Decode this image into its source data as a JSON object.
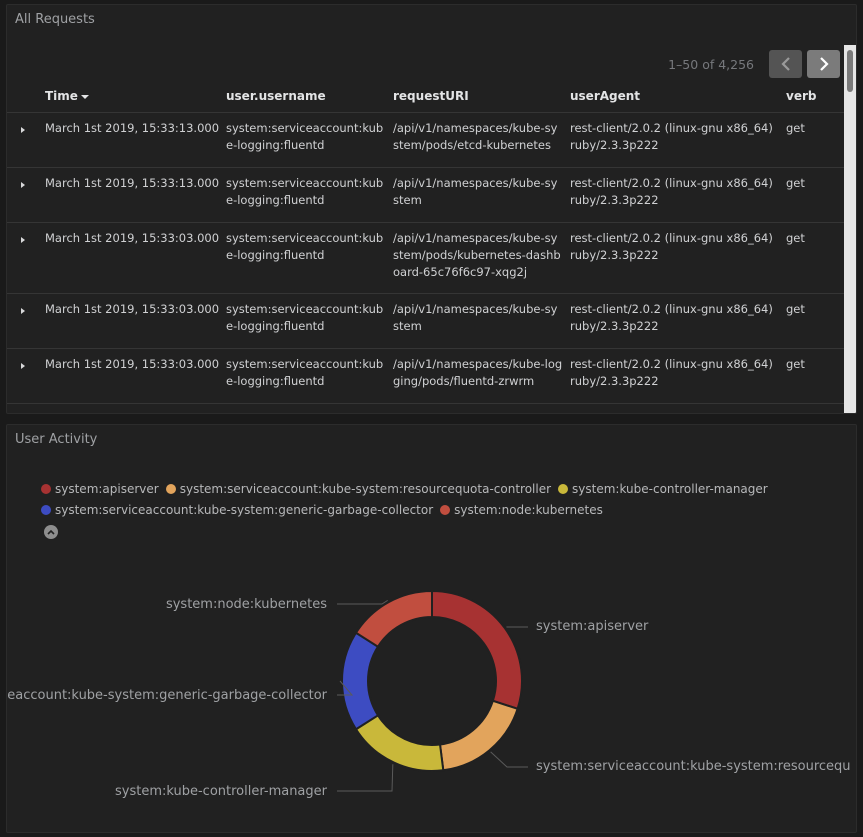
{
  "requests_panel": {
    "title": "All Requests",
    "pagination": "1–50 of 4,256",
    "columns": [
      "Time",
      "user.username",
      "requestURI",
      "userAgent",
      "verb"
    ],
    "rows": [
      {
        "time": "March 1st 2019, 15:33:13.000",
        "user": "system:serviceaccount:kube-logging:fluentd",
        "uri": "/api/v1/namespaces/kube-system/pods/etcd-kubernetes",
        "ua": "rest-client/2.0.2 (linux-gnu x86_64) ruby/2.3.3p222",
        "verb": "get"
      },
      {
        "time": "March 1st 2019, 15:33:13.000",
        "user": "system:serviceaccount:kube-logging:fluentd",
        "uri": "/api/v1/namespaces/kube-system",
        "ua": "rest-client/2.0.2 (linux-gnu x86_64) ruby/2.3.3p222",
        "verb": "get"
      },
      {
        "time": "March 1st 2019, 15:33:03.000",
        "user": "system:serviceaccount:kube-logging:fluentd",
        "uri": "/api/v1/namespaces/kube-system/pods/kubernetes-dashboard-65c76f6c97-xqg2j",
        "ua": "rest-client/2.0.2 (linux-gnu x86_64) ruby/2.3.3p222",
        "verb": "get"
      },
      {
        "time": "March 1st 2019, 15:33:03.000",
        "user": "system:serviceaccount:kube-logging:fluentd",
        "uri": "/api/v1/namespaces/kube-system",
        "ua": "rest-client/2.0.2 (linux-gnu x86_64) ruby/2.3.3p222",
        "verb": "get"
      },
      {
        "time": "March 1st 2019, 15:33:03.000",
        "user": "system:serviceaccount:kube-logging:fluentd",
        "uri": "/api/v1/namespaces/kube-logging/pods/fluentd-zrwrm",
        "ua": "rest-client/2.0.2 (linux-gnu x86_64) ruby/2.3.3p222",
        "verb": "get"
      }
    ]
  },
  "activity_panel": {
    "title": "User Activity"
  },
  "chart_data": {
    "type": "pie",
    "donut": true,
    "legend_position": "top-left",
    "series": [
      {
        "name": "system:apiserver",
        "value": 30,
        "color": "#a73232"
      },
      {
        "name": "system:serviceaccount:kube-system:resourcequota-controller",
        "value": 18,
        "color": "#e2a45c"
      },
      {
        "name": "system:kube-controller-manager",
        "value": 18,
        "color": "#c9b83a"
      },
      {
        "name": "system:serviceaccount:kube-system:generic-garbage-collector",
        "value": 18,
        "color": "#3d4cc2"
      },
      {
        "name": "system:node:kubernetes",
        "value": 16,
        "color": "#c14e3f"
      }
    ],
    "slice_labels": [
      "system:apiserver",
      "system:serviceaccount:kube-system:resourcequ",
      "system:kube-controller-manager",
      "eaccount:kube-system:generic-garbage-collector",
      "system:node:kubernetes"
    ]
  }
}
